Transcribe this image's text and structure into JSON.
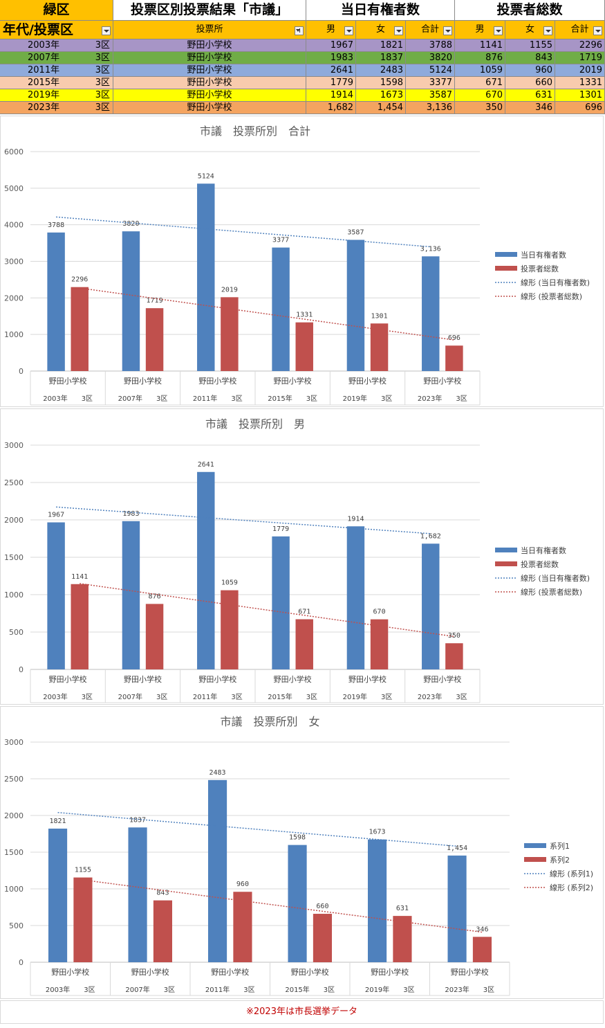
{
  "header": {
    "ward": "緑区",
    "title": "投票区別投票結果「市議」",
    "group_eligible": "当日有権者数",
    "group_voters": "投票者総数",
    "col_year": "年代/投票区",
    "col_place": "投票所",
    "col_male": "男",
    "col_female": "女",
    "col_total": "合計"
  },
  "rows": [
    {
      "year": "2003年",
      "ku": "3区",
      "place": "野田小学校",
      "em": "1967",
      "ef": "1821",
      "et": "3788",
      "vm": "1141",
      "vf": "1155",
      "vt": "2296",
      "color": "#a795c6"
    },
    {
      "year": "2007年",
      "ku": "3区",
      "place": "野田小学校",
      "em": "1983",
      "ef": "1837",
      "et": "3820",
      "vm": "876",
      "vf": "843",
      "vt": "1719",
      "color": "#70ad47"
    },
    {
      "year": "2011年",
      "ku": "3区",
      "place": "野田小学校",
      "em": "2641",
      "ef": "2483",
      "et": "5124",
      "vm": "1059",
      "vf": "960",
      "vt": "2019",
      "color": "#8eaadb"
    },
    {
      "year": "2015年",
      "ku": "3区",
      "place": "野田小学校",
      "em": "1779",
      "ef": "1598",
      "et": "3377",
      "vm": "671",
      "vf": "660",
      "vt": "1331",
      "color": "#f8cbad"
    },
    {
      "year": "2019年",
      "ku": "3区",
      "place": "野田小学校",
      "em": "1914",
      "ef": "1673",
      "et": "3587",
      "vm": "670",
      "vf": "631",
      "vt": "1301",
      "color": "#ffff00"
    },
    {
      "year": "2023年",
      "ku": "3区",
      "place": "野田小学校",
      "em": "1,682",
      "ef": "1,454",
      "et": "3,136",
      "vm": "350",
      "vf": "346",
      "vt": "696",
      "color": "#f4a460"
    }
  ],
  "note": "※2023年は市長選挙データ",
  "note_color": "#c00000",
  "chart_data": [
    {
      "type": "bar",
      "title": "市議　投票所別　合計",
      "categories": [
        "野田小学校",
        "野田小学校",
        "野田小学校",
        "野田小学校",
        "野田小学校",
        "野田小学校"
      ],
      "subcategories": [
        "2003年　　3区",
        "2007年　　3区",
        "2011年　　3区",
        "2015年　　3区",
        "2019年　　3区",
        "2023年　　3区"
      ],
      "series": [
        {
          "name": "当日有権者数",
          "values": [
            3788,
            3820,
            5124,
            3377,
            3587,
            3136
          ],
          "labels": [
            "3788",
            "3820",
            "5124",
            "3377",
            "3587",
            "3,136"
          ],
          "color": "#4f81bd"
        },
        {
          "name": "投票者総数",
          "values": [
            2296,
            1719,
            2019,
            1331,
            1301,
            696
          ],
          "labels": [
            "2296",
            "1719",
            "2019",
            "1331",
            "1301",
            "696"
          ],
          "color": "#c0504d"
        }
      ],
      "trendlines": [
        {
          "name": "線形 (当日有権者数)",
          "series": 0,
          "type": "linear",
          "color": "#4f81bd"
        },
        {
          "name": "線形 (投票者総数)",
          "series": 1,
          "type": "linear",
          "color": "#c0504d"
        }
      ],
      "ylim": [
        0,
        6000
      ],
      "yticks": [
        0,
        1000,
        2000,
        3000,
        4000,
        5000,
        6000
      ],
      "grid": true,
      "legend": "right"
    },
    {
      "type": "bar",
      "title": "市議　投票所別　男",
      "categories": [
        "野田小学校",
        "野田小学校",
        "野田小学校",
        "野田小学校",
        "野田小学校",
        "野田小学校"
      ],
      "subcategories": [
        "2003年　　3区",
        "2007年　　3区",
        "2011年　　3区",
        "2015年　　3区",
        "2019年　　3区",
        "2023年　　3区"
      ],
      "series": [
        {
          "name": "当日有権者数",
          "values": [
            1967,
            1983,
            2641,
            1779,
            1914,
            1682
          ],
          "labels": [
            "1967",
            "1983",
            "2641",
            "1779",
            "1914",
            "1,682"
          ],
          "color": "#4f81bd"
        },
        {
          "name": "投票者総数",
          "values": [
            1141,
            876,
            1059,
            671,
            670,
            350
          ],
          "labels": [
            "1141",
            "876",
            "1059",
            "671",
            "670",
            "350"
          ],
          "color": "#c0504d"
        }
      ],
      "trendlines": [
        {
          "name": "線形 (当日有権者数)",
          "series": 0,
          "type": "linear",
          "color": "#4f81bd"
        },
        {
          "name": "線形 (投票者総数)",
          "series": 1,
          "type": "linear",
          "color": "#c0504d"
        }
      ],
      "ylim": [
        0,
        3000
      ],
      "yticks": [
        0,
        500,
        1000,
        1500,
        2000,
        2500,
        3000
      ],
      "grid": true,
      "legend": "right"
    },
    {
      "type": "bar",
      "title": "市議　投票所別　女",
      "categories": [
        "野田小学校",
        "野田小学校",
        "野田小学校",
        "野田小学校",
        "野田小学校",
        "野田小学校"
      ],
      "subcategories": [
        "2003年　　3区",
        "2007年　　3区",
        "2011年　　3区",
        "2015年　　3区",
        "2019年　　3区",
        "2023年　　3区"
      ],
      "series": [
        {
          "name": "系列1",
          "values": [
            1821,
            1837,
            2483,
            1598,
            1673,
            1454
          ],
          "labels": [
            "1821",
            "1837",
            "2483",
            "1598",
            "1673",
            "1,454"
          ],
          "color": "#4f81bd"
        },
        {
          "name": "系列2",
          "values": [
            1155,
            843,
            960,
            660,
            631,
            346
          ],
          "labels": [
            "1155",
            "843",
            "960",
            "660",
            "631",
            "346"
          ],
          "color": "#c0504d"
        }
      ],
      "trendlines": [
        {
          "name": "線形 (系列1)",
          "series": 0,
          "type": "linear",
          "color": "#4f81bd"
        },
        {
          "name": "線形 (系列2)",
          "series": 1,
          "type": "linear",
          "color": "#c0504d"
        }
      ],
      "ylim": [
        0,
        3000
      ],
      "yticks": [
        0,
        500,
        1000,
        1500,
        2000,
        2500,
        3000
      ],
      "grid": true,
      "legend": "right"
    }
  ]
}
